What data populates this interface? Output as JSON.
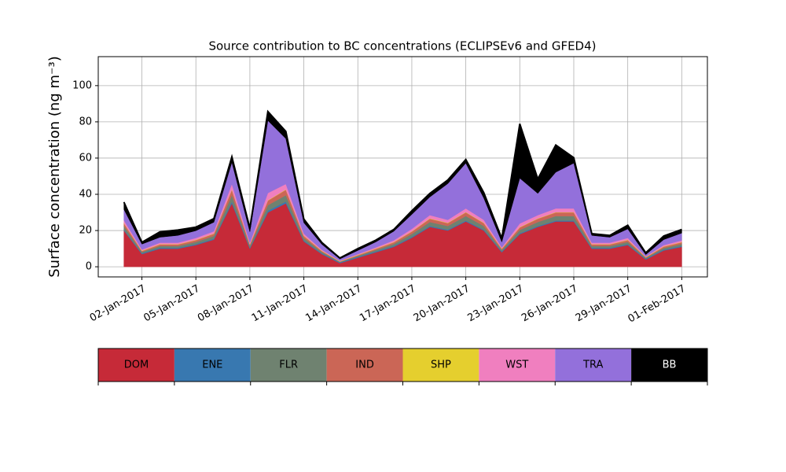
{
  "chart_data": {
    "type": "stacked_area",
    "title": "Source contribution to BC concentrations (ECLIPSEv6 and GFED4)",
    "ylabel": "Surface concentration (ng m⁻³)",
    "x": [
      "2017-01-01",
      "2017-01-02",
      "2017-01-03",
      "2017-01-04",
      "2017-01-05",
      "2017-01-06",
      "2017-01-07",
      "2017-01-08",
      "2017-01-09",
      "2017-01-10",
      "2017-01-11",
      "2017-01-12",
      "2017-01-13",
      "2017-01-14",
      "2017-01-15",
      "2017-01-16",
      "2017-01-17",
      "2017-01-18",
      "2017-01-19",
      "2017-01-20",
      "2017-01-21",
      "2017-01-22",
      "2017-01-23",
      "2017-01-24",
      "2017-01-25",
      "2017-01-26",
      "2017-01-27",
      "2017-01-28",
      "2017-01-29",
      "2017-01-30",
      "2017-01-31",
      "2017-02-01"
    ],
    "series": [
      {
        "name": "DOM",
        "color": "#c62a38",
        "values": [
          20,
          7,
          10,
          10,
          12,
          15,
          35,
          10,
          30,
          35,
          14,
          7,
          2,
          5,
          8,
          11,
          16,
          22,
          20,
          25,
          20,
          8,
          18,
          22,
          25,
          25,
          10,
          10,
          12,
          4,
          9,
          11
        ]
      },
      {
        "name": "ENE",
        "color": "#3878b0",
        "values": [
          0.5,
          0.5,
          0.5,
          0.5,
          0.5,
          0.5,
          1,
          0.5,
          1,
          1,
          0.5,
          0.5,
          0.5,
          0.5,
          0.5,
          0.5,
          0.5,
          0.5,
          0.5,
          0.5,
          0.5,
          0.5,
          0.5,
          0.5,
          0.5,
          0.5,
          0.5,
          0.5,
          0.5,
          0.5,
          0.5,
          0.5
        ]
      },
      {
        "name": "FLR",
        "color": "#6f8270",
        "values": [
          2,
          0.7,
          1,
          1,
          1.2,
          1.5,
          3.5,
          1,
          3,
          3.5,
          1.4,
          0.7,
          0.2,
          0.5,
          0.8,
          1.1,
          1.6,
          2.2,
          2,
          2.5,
          2,
          0.8,
          1.8,
          2.2,
          2.5,
          2.5,
          1,
          1,
          1.2,
          0.4,
          0.9,
          1.1
        ]
      },
      {
        "name": "IND",
        "color": "#cb6656",
        "values": [
          1.5,
          0.5,
          0.8,
          0.8,
          1,
          1.2,
          3,
          0.8,
          2.5,
          3,
          1.1,
          0.5,
          0.2,
          0.4,
          0.6,
          0.9,
          1.3,
          1.8,
          1.6,
          2,
          1.6,
          0.6,
          1.4,
          1.8,
          2,
          2,
          0.8,
          0.8,
          1,
          0.3,
          0.7,
          0.9
        ]
      },
      {
        "name": "SHP",
        "color": "#e5cf2e",
        "values": [
          0.2,
          0.2,
          0.2,
          0.2,
          0.2,
          0.2,
          0.2,
          0.2,
          0.2,
          0.2,
          0.2,
          0.2,
          0.2,
          0.2,
          0.2,
          0.2,
          0.2,
          0.2,
          0.2,
          0.2,
          0.2,
          0.2,
          0.2,
          0.2,
          0.2,
          0.2,
          0.2,
          0.2,
          0.2,
          0.2,
          0.2,
          0.2
        ]
      },
      {
        "name": "WST",
        "color": "#f07fbf",
        "values": [
          1.5,
          0.6,
          0.8,
          0.8,
          1,
          1.2,
          3,
          0.8,
          4,
          3,
          1.1,
          0.5,
          0.2,
          0.4,
          0.6,
          0.9,
          1.3,
          1.8,
          1.6,
          2,
          1.6,
          0.6,
          2,
          1.8,
          2,
          2,
          0.8,
          0.8,
          1,
          0.3,
          0.7,
          0.9
        ]
      },
      {
        "name": "TRA",
        "color": "#9370db",
        "values": [
          6,
          3,
          3,
          4,
          4,
          5,
          12,
          6,
          40,
          25,
          6,
          3,
          1,
          2,
          3,
          5,
          8,
          10,
          20,
          25,
          12,
          3,
          25,
          12,
          20,
          25,
          4,
          3,
          5,
          1,
          3,
          4
        ]
      },
      {
        "name": "BB",
        "color": "#000000",
        "values": [
          4,
          1,
          3,
          3,
          2,
          2,
          3,
          2,
          5,
          4,
          2,
          1,
          0.5,
          1,
          1,
          1,
          2,
          2,
          2,
          2,
          3,
          2,
          30,
          8,
          15,
          3,
          1,
          1,
          2,
          1,
          2,
          2
        ]
      }
    ],
    "ylim": [
      -5.6,
      116
    ],
    "yticks": [
      0,
      20,
      40,
      60,
      80,
      100
    ],
    "xticks": [
      {
        "value": "2017-01-02",
        "label": "02-Jan-2017"
      },
      {
        "value": "2017-01-05",
        "label": "05-Jan-2017"
      },
      {
        "value": "2017-01-08",
        "label": "08-Jan-2017"
      },
      {
        "value": "2017-01-11",
        "label": "11-Jan-2017"
      },
      {
        "value": "2017-01-14",
        "label": "14-Jan-2017"
      },
      {
        "value": "2017-01-17",
        "label": "17-Jan-2017"
      },
      {
        "value": "2017-01-20",
        "label": "20-Jan-2017"
      },
      {
        "value": "2017-01-23",
        "label": "23-Jan-2017"
      },
      {
        "value": "2017-01-26",
        "label": "26-Jan-2017"
      },
      {
        "value": "2017-01-29",
        "label": "29-Jan-2017"
      },
      {
        "value": "2017-02-01",
        "label": "01-Feb-2017"
      }
    ],
    "grid": true
  }
}
